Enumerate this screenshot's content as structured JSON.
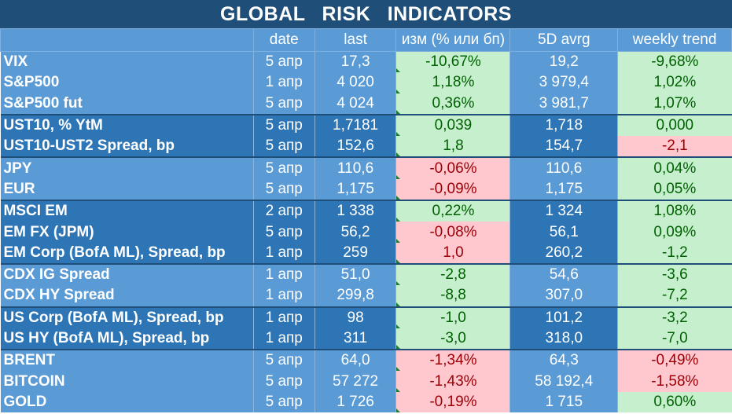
{
  "title": "GLOBAL   RISK   INDICATORS",
  "columns": [
    "",
    "date",
    "last",
    "изм (% или бп)",
    "5D avrg",
    "weekly trend"
  ],
  "groups": [
    {
      "tone": "a",
      "rows": [
        {
          "name": "VIX",
          "date": "5 апр",
          "last": "17,3",
          "chg": "-10,67%",
          "chg_tone": "pos",
          "avg": "19,2",
          "avg_tone": "neu",
          "trend": "-9,68%",
          "trend_tone": "pos"
        },
        {
          "name": "S&P500",
          "date": "1 апр",
          "last": "4 020",
          "chg": "1,18%",
          "chg_tone": "pos",
          "avg": "3 979,4",
          "avg_tone": "neu",
          "trend": "1,02%",
          "trend_tone": "pos"
        },
        {
          "name": "S&P500 fut",
          "date": "5 апр",
          "last": "4 024",
          "chg": "0,36%",
          "chg_tone": "pos",
          "avg": "3 981,7",
          "avg_tone": "neu",
          "trend": "1,07%",
          "trend_tone": "pos"
        }
      ]
    },
    {
      "tone": "b",
      "rows": [
        {
          "name": "UST10, % YtM",
          "date": "5 апр",
          "last": "1,7181",
          "chg": "0,039",
          "chg_tone": "pos",
          "avg": "1,718",
          "avg_tone": "neu",
          "trend": "0,000",
          "trend_tone": "pos"
        },
        {
          "name": "UST10-UST2 Spread, bp",
          "date": "5 апр",
          "last": "152,6",
          "chg": "1,8",
          "chg_tone": "pos",
          "avg": "154,7",
          "avg_tone": "neu",
          "trend": "-2,1",
          "trend_tone": "neg"
        }
      ]
    },
    {
      "tone": "a",
      "rows": [
        {
          "name": "JPY",
          "date": "5 апр",
          "last": "110,6",
          "chg": "-0,06%",
          "chg_tone": "neg",
          "avg": "110,6",
          "avg_tone": "neu",
          "trend": "0,04%",
          "trend_tone": "pos"
        },
        {
          "name": "EUR",
          "date": "5 апр",
          "last": "1,175",
          "chg": "-0,09%",
          "chg_tone": "neg",
          "avg": "1,175",
          "avg_tone": "neu",
          "trend": "0,05%",
          "trend_tone": "pos"
        }
      ]
    },
    {
      "tone": "b",
      "rows": [
        {
          "name": "MSCI EM",
          "date": "2 апр",
          "last": "1 338",
          "chg": "0,22%",
          "chg_tone": "pos",
          "avg": "1 324",
          "avg_tone": "neu",
          "trend": "1,08%",
          "trend_tone": "pos"
        },
        {
          "name": "EM FX (JPM)",
          "date": "5 апр",
          "last": "56,2",
          "chg": "-0,08%",
          "chg_tone": "neg",
          "avg": "56,1",
          "avg_tone": "neu",
          "trend": "0,09%",
          "trend_tone": "pos"
        },
        {
          "name": "EM Corp (BofA ML), Spread, bp",
          "date": "1 апр",
          "last": "259",
          "chg": "1,0",
          "chg_tone": "neg",
          "avg": "260,2",
          "avg_tone": "neu",
          "trend": "-1,2",
          "trend_tone": "pos"
        }
      ]
    },
    {
      "tone": "a",
      "rows": [
        {
          "name": "CDX IG Spread",
          "date": "1 апр",
          "last": "51,0",
          "chg": "-2,8",
          "chg_tone": "pos",
          "avg": "54,6",
          "avg_tone": "neu",
          "trend": "-3,6",
          "trend_tone": "pos"
        },
        {
          "name": "CDX HY Spread",
          "date": "1 апр",
          "last": "299,8",
          "chg": "-8,8",
          "chg_tone": "pos",
          "avg": "307,0",
          "avg_tone": "neu",
          "trend": "-7,2",
          "trend_tone": "pos"
        }
      ]
    },
    {
      "tone": "b",
      "rows": [
        {
          "name": "US Corp (BofA ML), Spread, bp",
          "date": "1 апр",
          "last": "98",
          "chg": "-1,0",
          "chg_tone": "pos",
          "avg": "101,2",
          "avg_tone": "neu",
          "trend": "-3,2",
          "trend_tone": "pos"
        },
        {
          "name": "US HY (BofA ML), Spread, bp",
          "date": "1 апр",
          "last": "311",
          "chg": "-3,0",
          "chg_tone": "pos",
          "avg": "318,0",
          "avg_tone": "neu",
          "trend": "-7,0",
          "trend_tone": "pos"
        }
      ]
    },
    {
      "tone": "a",
      "rows": [
        {
          "name": "BRENT",
          "date": "5 апр",
          "last": "64,0",
          "chg": "-1,34%",
          "chg_tone": "neg",
          "avg": "64,3",
          "avg_tone": "neu",
          "trend": "-0,49%",
          "trend_tone": "neg"
        },
        {
          "name": "BITCOIN",
          "date": "5 апр",
          "last": "57 272",
          "chg": "-1,43%",
          "chg_tone": "neg",
          "avg": "58 192,4",
          "avg_tone": "neu",
          "trend": "-1,58%",
          "trend_tone": "neg"
        },
        {
          "name": "GOLD",
          "date": "5 апр",
          "last": "1 726",
          "chg": "-0,19%",
          "chg_tone": "neg",
          "avg": "1 715",
          "avg_tone": "neu",
          "trend": "0,60%",
          "trend_tone": "pos"
        }
      ]
    }
  ],
  "colors": {
    "title_bg": "#1f4e79",
    "header_bg": "#5b9bd5",
    "band_a": "#5b9bd5",
    "band_b": "#2e75b6",
    "positive_fill": "#c6efce",
    "positive_text": "#006100",
    "negative_fill": "#ffc7ce",
    "negative_text": "#9c0006"
  }
}
